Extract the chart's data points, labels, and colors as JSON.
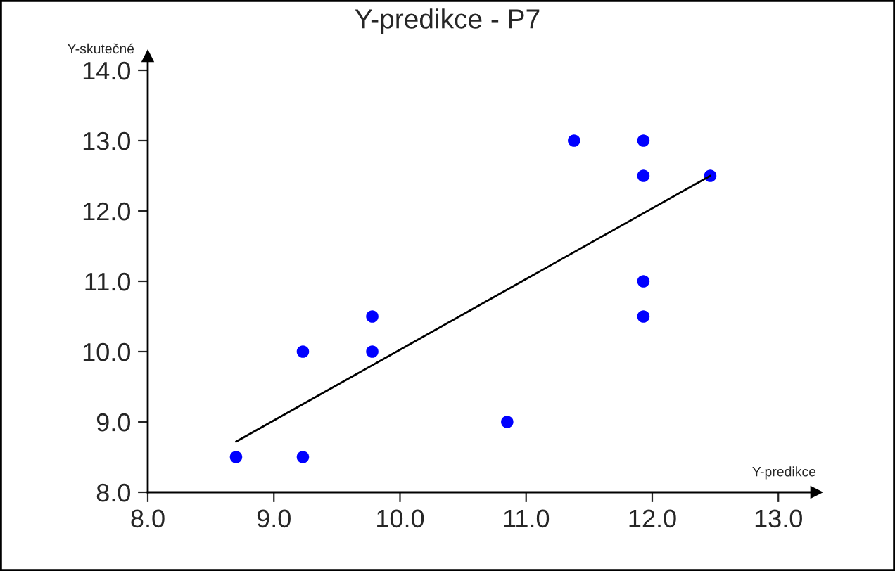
{
  "chart_data": {
    "type": "scatter",
    "title": "Y-predikce - P7",
    "xlabel": "Y-predikce",
    "ylabel": "Y-skutečné",
    "xlim": [
      8.0,
      13.3
    ],
    "ylim": [
      8.0,
      14.2
    ],
    "xticks": [
      {
        "value": 8,
        "label": "8.0"
      },
      {
        "value": 9,
        "label": "9.0"
      },
      {
        "value": 10,
        "label": "10.0"
      },
      {
        "value": 11,
        "label": "11.0"
      },
      {
        "value": 12,
        "label": "12.0"
      },
      {
        "value": 13,
        "label": "13.0"
      }
    ],
    "yticks": [
      {
        "value": 8,
        "label": "8.0"
      },
      {
        "value": 9,
        "label": "9.0"
      },
      {
        "value": 10,
        "label": "10.0"
      },
      {
        "value": 11,
        "label": "11.0"
      },
      {
        "value": 12,
        "label": "12.0"
      },
      {
        "value": 13,
        "label": "13.0"
      },
      {
        "value": 14,
        "label": "14.0"
      }
    ],
    "grid": false,
    "series": [
      {
        "marker": "circle",
        "color": "#0000ff",
        "x": [
          8.7,
          9.23,
          9.23,
          9.78,
          9.78,
          10.85,
          11.38,
          11.93,
          11.93,
          11.93,
          11.93,
          12.46
        ],
        "values": [
          8.5,
          8.5,
          10.0,
          10.0,
          10.5,
          9.0,
          13.0,
          13.0,
          12.5,
          11.0,
          10.5,
          12.5
        ]
      },
      {
        "type": "line",
        "color": "#000000",
        "x": [
          8.7,
          12.46
        ],
        "values": [
          8.72,
          12.5
        ]
      }
    ]
  }
}
